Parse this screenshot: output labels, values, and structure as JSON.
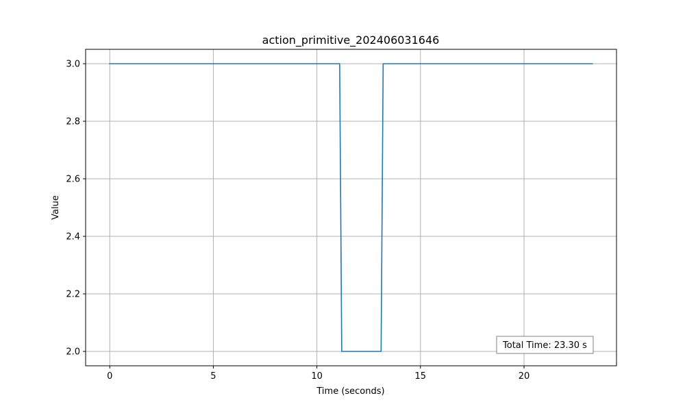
{
  "chart_data": {
    "type": "line",
    "title": "action_primitive_202406031646",
    "xlabel": "Time (seconds)",
    "ylabel": "Value",
    "xlim": [
      -1.165,
      24.465
    ],
    "ylim": [
      1.95,
      3.05
    ],
    "xticks": [
      0,
      5,
      10,
      15,
      20
    ],
    "yticks": [
      2.0,
      2.2,
      2.4,
      2.6,
      2.8,
      3.0
    ],
    "xtick_labels": [
      "0",
      "5",
      "10",
      "15",
      "20"
    ],
    "ytick_labels": [
      "2.0",
      "2.2",
      "2.4",
      "2.6",
      "2.8",
      "3.0"
    ],
    "grid": true,
    "line_color": "#1f77b4",
    "grid_color": "#b0b0b0",
    "series": [
      {
        "values_xy": [
          [
            0.0,
            3.0
          ],
          [
            11.1,
            3.0
          ],
          [
            11.2,
            2.0
          ],
          [
            13.1,
            2.0
          ],
          [
            13.2,
            3.0
          ],
          [
            23.3,
            3.0
          ]
        ]
      }
    ],
    "annotation": {
      "text": "Total Time: 23.30 s",
      "position": "bottom-right"
    }
  }
}
